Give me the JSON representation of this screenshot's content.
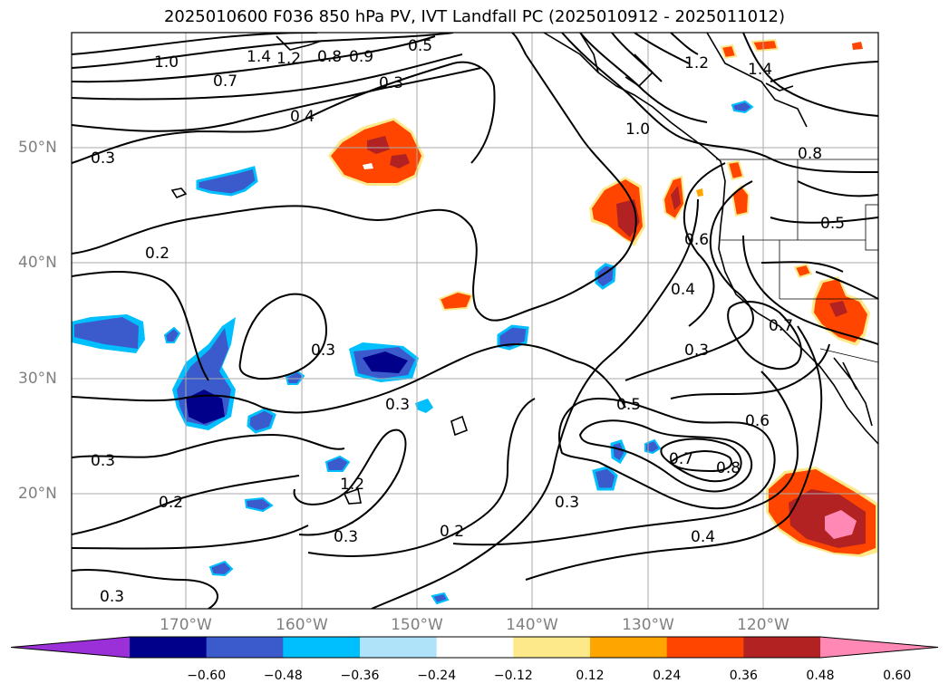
{
  "title": "2025010600 F036 850 hPa PV, IVT Landfall PC (2025010912 - 2025011012)",
  "lat_labels": [
    "50°N",
    "40°N",
    "30°N",
    "20°N"
  ],
  "lon_labels": [
    "170°W",
    "160°W",
    "150°W",
    "140°W",
    "130°W",
    "120°W"
  ],
  "colorbar": {
    "tick_labels": [
      "−0.60",
      "−0.48",
      "−0.36",
      "−0.24",
      "−0.12",
      "0.12",
      "0.24",
      "0.36",
      "0.48",
      "0.60"
    ],
    "colors": [
      "#9b30d9",
      "#00008b",
      "#3b5bcd",
      "#00bfff",
      "#afe3fa",
      "#ffffff",
      "#fde98a",
      "#ffa500",
      "#ff4500",
      "#b22222",
      "#ff88b4"
    ]
  },
  "contour_labels": [
    "1.4",
    "1.2",
    "1.0",
    "0.9",
    "0.8",
    "0.7",
    "0.6",
    "0.5",
    "0.4",
    "0.3",
    "0.2"
  ],
  "map_extent": {
    "lon": [
      -180,
      -110
    ],
    "lat": [
      10,
      60
    ]
  },
  "grid": true
}
